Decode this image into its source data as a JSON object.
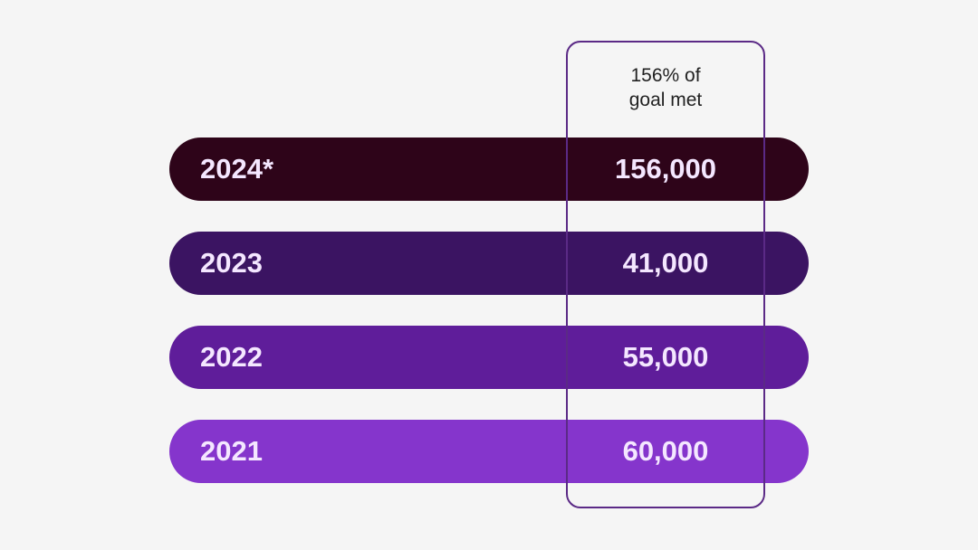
{
  "chart_data": {
    "type": "table",
    "title": "",
    "highlight_column": {
      "label_lines": [
        "156% of",
        "goal met"
      ]
    },
    "rows": [
      {
        "year": "2024*",
        "value": 156000,
        "value_label": "156,000",
        "color": "#2e0419"
      },
      {
        "year": "2023",
        "value": 41000,
        "value_label": "41,000",
        "color": "#3b1462"
      },
      {
        "year": "2022",
        "value": 55000,
        "value_label": "55,000",
        "color": "#5f1d9a"
      },
      {
        "year": "2021",
        "value": 60000,
        "value_label": "60,000",
        "color": "#8535cc"
      }
    ]
  },
  "colors": {
    "background": "#f5f5f5",
    "highlight_border": "#5b2a86",
    "row_text": "#f4e7ff",
    "header_text": "#222222"
  }
}
